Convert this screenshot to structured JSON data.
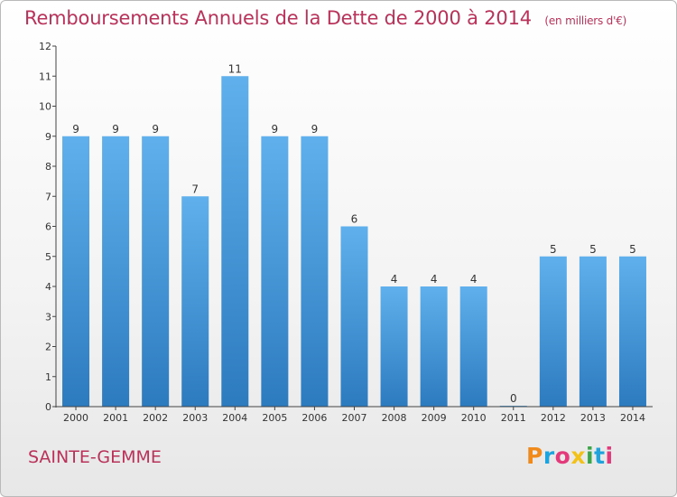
{
  "header": {
    "title": "Remboursements Annuels de la Dette de 2000 à 2014",
    "subtitle": "(en milliers d'€)"
  },
  "footer": {
    "commune": "SAINTE-GEMME",
    "logo_text": "Proxiti",
    "logo_colors": [
      "#f08a1c",
      "#1fa3dc",
      "#e23a7a",
      "#f2c21b",
      "#3aa648",
      "#1fa3dc",
      "#e23a7a"
    ]
  },
  "colors": {
    "title": "#b8325a",
    "bar_top": "#5fb0ec",
    "bar_bottom": "#2d7bbf",
    "axis": "#444444",
    "label": "#333333"
  },
  "chart_data": {
    "type": "bar",
    "title": "Remboursements Annuels de la Dette de 2000 à 2014",
    "subtitle": "(en milliers d'€)",
    "categories": [
      "2000",
      "2001",
      "2002",
      "2003",
      "2004",
      "2005",
      "2006",
      "2007",
      "2008",
      "2009",
      "2010",
      "2011",
      "2012",
      "2013",
      "2014"
    ],
    "values": [
      9,
      9,
      9,
      7,
      11,
      9,
      9,
      6,
      4,
      4,
      4,
      0,
      5,
      5,
      5
    ],
    "data_labels": [
      "9",
      "9",
      "9",
      "7",
      "11",
      "9",
      "9",
      "6",
      "4",
      "4",
      "4",
      "0",
      "5",
      "5",
      "5"
    ],
    "ylim": [
      0,
      12
    ],
    "yticks": [
      "0",
      "1",
      "2",
      "3",
      "4",
      "5",
      "6",
      "7",
      "8",
      "9",
      "10",
      "11",
      "12"
    ],
    "xlabel": "",
    "ylabel": "",
    "grid": false,
    "legend": "none"
  }
}
